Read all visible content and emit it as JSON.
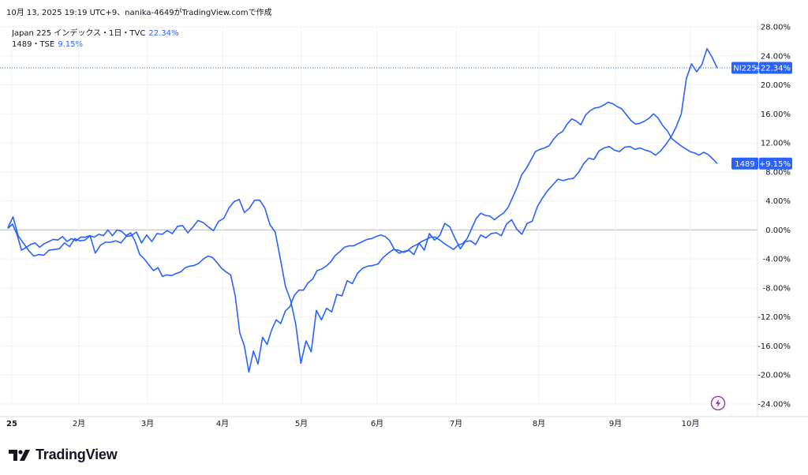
{
  "header": {
    "attribution": "10月 13, 2025 19:19 UTC+9、nanika-4649がTradingView.comで作成"
  },
  "legend": [
    {
      "label": "Japan 225 インデックス・1日・TVC",
      "value": "22.34%"
    },
    {
      "label": "1489・TSE",
      "value": "9.15%"
    }
  ],
  "branding": {
    "logo_text": "TradingView"
  },
  "colors": {
    "line": "#2962ff",
    "badge": "#2962ff",
    "grid": "#f0f3fa",
    "zero": "#b2b5be"
  },
  "icons": {
    "lightning": "lightning-icon"
  },
  "chart_data": {
    "type": "line",
    "x_ticks": [
      "25",
      "2月",
      "3月",
      "4月",
      "5月",
      "6月",
      "7月",
      "8月",
      "9月",
      "10月"
    ],
    "y_ticks": [
      "28.00%",
      "24.00%",
      "20.00%",
      "16.00%",
      "12.00%",
      "8.00%",
      "4.00%",
      "0.00%",
      "-4.00%",
      "-8.00%",
      "-12.00%",
      "-16.00%",
      "-20.00%",
      "-24.00%"
    ],
    "ylim": [
      -24,
      28
    ],
    "badges": [
      {
        "series": "NI225",
        "name": "NI225",
        "value": "+22.34%",
        "level": 22.34
      },
      {
        "series": "1489",
        "name": "1489",
        "value": "+9.15%",
        "level": 9.15
      }
    ],
    "series": [
      {
        "name": "NI225",
        "values": [
          0.3,
          1.8,
          -0.8,
          -1.8,
          -2.8,
          -3.6,
          -3.4,
          -3.5,
          -2.8,
          -2.7,
          -2.6,
          -1.8,
          -2.3,
          -1.2,
          -1.5,
          -1.4,
          -0.8,
          -3.2,
          -2.1,
          -1.7,
          -1.7,
          -1.5,
          -1.8,
          -0.9,
          -0.8,
          -0.3,
          -1.8,
          -0.7,
          -1.6,
          -0.5,
          -0.6,
          -0.1,
          -0.5,
          0.5,
          0.6,
          -0.4,
          0.4,
          1.3,
          1.0,
          0.4,
          -0.1,
          1.2,
          1.6,
          3.0,
          3.9,
          4.2,
          2.4,
          3.0,
          4.1,
          4.1,
          3.0,
          0.7,
          -0.3,
          -4.0,
          -7.8,
          -9.7,
          -13.0,
          -18.4,
          -15.3,
          -16.8,
          -11.1,
          -12.4,
          -10.8,
          -11.3,
          -8.9,
          -9.1,
          -7.0,
          -7.4,
          -6.0,
          -5.3,
          -5.0,
          -4.9,
          -4.7,
          -3.8,
          -3.2,
          -2.7,
          -2.8,
          -3.1,
          -2.8,
          -3.4,
          -1.8,
          -2.8,
          -0.5,
          -1.4,
          -0.8,
          0.9,
          0.4,
          -1.2,
          -2.6,
          -1.6,
          -1.5,
          -2.0,
          -0.7,
          -1.1,
          -0.5,
          -0.4,
          -0.8,
          0.8,
          1.4,
          0.1,
          -0.6,
          0.9,
          1.2,
          3.2,
          4.4,
          5.4,
          6.2,
          7.0,
          6.8,
          7.0,
          7.1,
          7.9,
          9.1,
          9.9,
          9.7,
          10.9,
          11.3,
          11.5,
          11.0,
          10.8,
          11.4,
          11.5,
          11.1,
          11.3,
          11.0,
          10.8,
          10.3,
          10.9,
          11.8,
          12.8,
          14.2,
          16.0,
          20.9,
          22.9,
          21.8,
          22.8,
          25.0,
          23.8,
          22.3
        ]
      },
      {
        "name": "1489",
        "values": [
          0.2,
          0.8,
          -0.6,
          -2.8,
          -2.4,
          -2.0,
          -1.8,
          -2.4,
          -1.9,
          -1.6,
          -1.3,
          -1.4,
          -0.9,
          -1.6,
          -1.2,
          -1.5,
          -1.0,
          -1.0,
          -0.8,
          -1.0,
          -0.6,
          -0.8,
          0.0,
          -0.8,
          0.0,
          -0.2,
          -0.8,
          -0.4,
          -1.6,
          -3.4,
          -4.0,
          -4.8,
          -5.6,
          -5.2,
          -6.4,
          -6.2,
          -6.3,
          -6.0,
          -5.8,
          -5.2,
          -5.0,
          -4.9,
          -4.6,
          -4.0,
          -3.6,
          -3.8,
          -4.5,
          -5.3,
          -5.8,
          -6.2,
          -9.1,
          -14.2,
          -16.0,
          -19.6,
          -16.7,
          -18.5,
          -14.8,
          -15.8,
          -13.8,
          -12.4,
          -12.9,
          -11.2,
          -10.6,
          -9.0,
          -8.3,
          -8.3,
          -7.3,
          -6.8,
          -5.6,
          -5.4,
          -5.0,
          -4.4,
          -3.5,
          -3.0,
          -2.4,
          -2.2,
          -2.2,
          -1.9,
          -1.6,
          -1.3,
          -1.2,
          -0.9,
          -0.7,
          -0.9,
          -1.5,
          -2.7,
          -3.2,
          -3.0,
          -2.8,
          -2.3,
          -2.0,
          -1.6,
          -1.3,
          -1.0,
          -1.0,
          -1.4,
          -1.9,
          -2.3,
          -2.7,
          -2.1,
          -1.9,
          -1.2,
          0.2,
          1.6,
          2.3,
          2.0,
          1.9,
          1.4,
          1.9,
          2.3,
          3.1,
          4.5,
          5.9,
          7.6,
          8.5,
          9.6,
          10.8,
          11.1,
          11.3,
          11.6,
          12.5,
          13.2,
          13.6,
          14.6,
          15.3,
          15.0,
          14.5,
          15.8,
          16.4,
          16.8,
          16.9,
          17.2,
          17.6,
          17.4,
          17.0,
          16.7,
          15.9,
          15.1,
          14.6,
          14.7,
          15.0,
          15.4,
          16.0,
          15.4,
          14.4,
          13.7,
          12.6,
          12.1,
          11.6,
          11.2,
          10.8,
          10.6,
          10.3,
          10.7,
          10.4,
          9.8,
          9.15
        ]
      }
    ]
  }
}
